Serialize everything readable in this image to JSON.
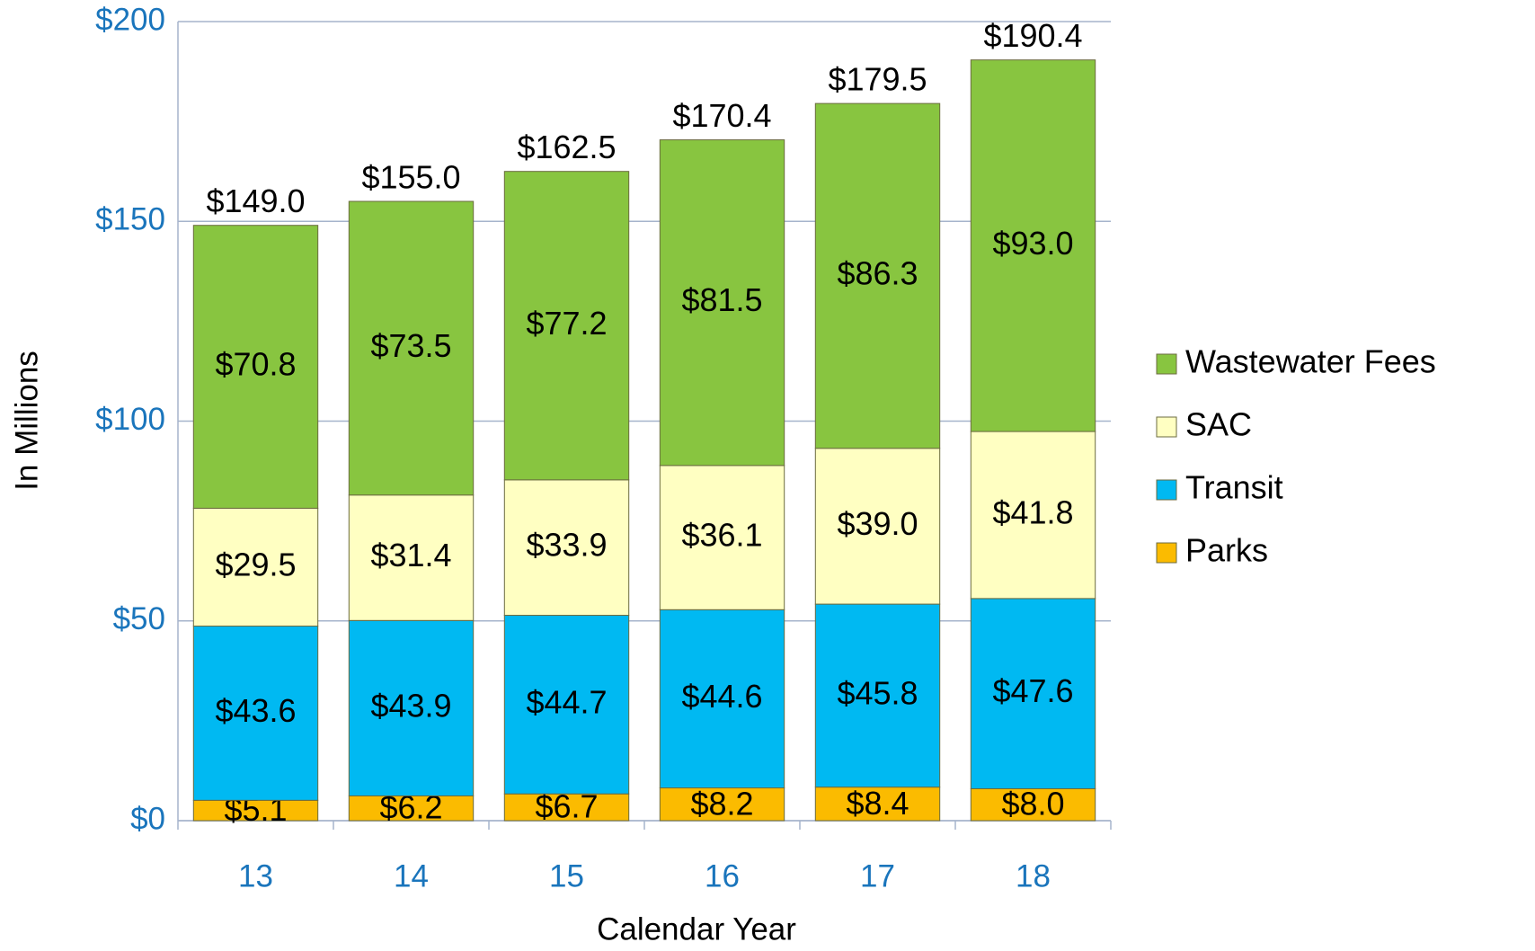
{
  "chart_data": {
    "type": "stacked_bar",
    "x_label": "Calendar Year",
    "y_label": "In Millions",
    "categories": [
      "13",
      "14",
      "15",
      "16",
      "17",
      "18"
    ],
    "series": [
      {
        "name": "Parks",
        "color": "#fbbb00",
        "values": [
          5.1,
          6.2,
          6.7,
          8.2,
          8.4,
          8.0
        ],
        "value_labels": [
          "$5.1",
          "$6.2",
          "$6.7",
          "$8.2",
          "$8.4",
          "$8.0"
        ]
      },
      {
        "name": "Transit",
        "color": "#00b9f2",
        "values": [
          43.6,
          43.9,
          44.7,
          44.6,
          45.8,
          47.6
        ],
        "value_labels": [
          "$43.6",
          "$43.9",
          "$44.7",
          "$44.6",
          "$45.8",
          "$47.6"
        ]
      },
      {
        "name": "SAC",
        "color": "#ffffc2",
        "values": [
          29.5,
          31.4,
          33.9,
          36.1,
          39.0,
          41.8
        ],
        "value_labels": [
          "$29.5",
          "$31.4",
          "$33.9",
          "$36.1",
          "$39.0",
          "$41.8"
        ]
      },
      {
        "name": "Wastewater Fees",
        "color": "#88c540",
        "values": [
          70.8,
          73.5,
          77.2,
          81.5,
          86.3,
          93.0
        ],
        "value_labels": [
          "$70.8",
          "$73.5",
          "$77.2",
          "$81.5",
          "$86.3",
          "$93.0"
        ]
      }
    ],
    "totals": [
      149.0,
      155.0,
      162.5,
      170.4,
      179.5,
      190.4
    ],
    "total_labels": [
      "$149.0",
      "$155.0",
      "$162.5",
      "$170.4",
      "$179.5",
      "$190.4"
    ],
    "ylim": [
      0,
      200
    ],
    "yticks": [
      {
        "value": 0,
        "label": "$0"
      },
      {
        "value": 50,
        "label": "$50"
      },
      {
        "value": 100,
        "label": "$100"
      },
      {
        "value": 150,
        "label": "$150"
      },
      {
        "value": 200,
        "label": "$200"
      }
    ],
    "grid": true,
    "legend": "right"
  }
}
